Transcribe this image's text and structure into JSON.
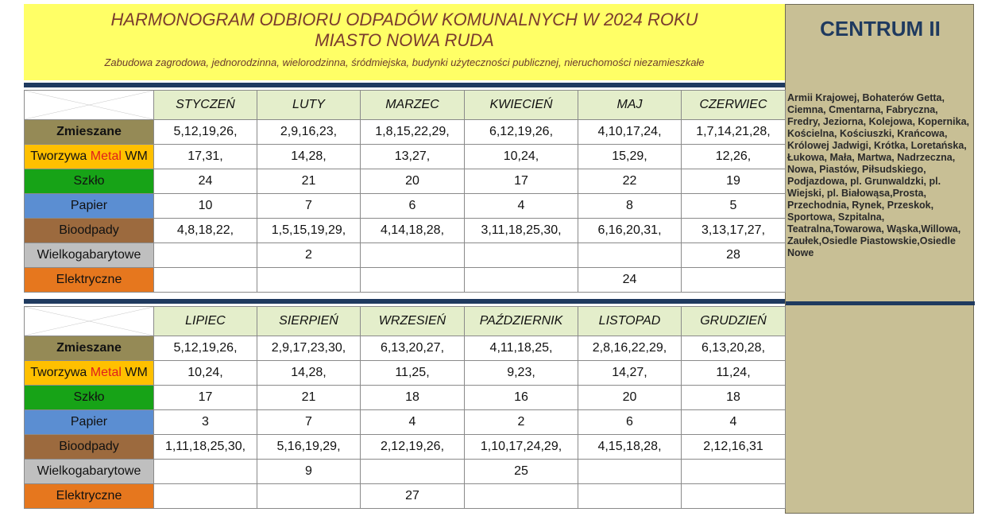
{
  "header": {
    "title_line1": "HARMONOGRAM ODBIORU  ODPADÓW  KOMUNALNYCH  W 2024 ROKU",
    "title_line2": "MIASTO NOWA RUDA",
    "subtitle": "Zabudowa zagrodowa, jednorodzinna, wielorodzinna, śródmiejska, budynki użyteczności publicznej, nieruchomości niezamieszkałe"
  },
  "sidebar": {
    "title": "CENTRUM  II",
    "streets": "Armii Krajowej, Bohaterów Getta, Ciemna, Cmentarna, Fabryczna, Fredry, Jeziorna, Kolejowa, Kopernika, Kościelna, Kościuszki, Krańcowa, Królowej Jadwigi, Krótka, Loretańska, Łukowa, Mała, Martwa, Nadrzeczna, Nowa, Piastów, Piłsudskiego, Podjazdowa, pl. Grunwaldzki, pl. Wiejski, pl. Białowąsa,Prosta, Przechodnia, Rynek, Przeskok, Sportowa, Szpitalna, Teatralna,Towarowa, Wąska,Willowa, Zaułek,Osiedle Piastowskie,Osiedle Nowe"
  },
  "categories": {
    "mixed": "Zmieszane",
    "plastics_pre": "Tworzywa ",
    "plastics_metal": "Metal",
    "plastics_post": " WM",
    "glass": "Szkło",
    "paper": "Papier",
    "bio": "Bioodpady",
    "bulky": "Wielkogabarytowe",
    "electro": "Elektryczne"
  },
  "colors": {
    "mixed": "#958a56",
    "plastics": "#ffc000",
    "glass": "#17a317",
    "paper": "#5b8ed2",
    "bio": "#9c6a3e",
    "bulky": "#bfbfbf",
    "electro": "#e6771e",
    "header_bg": "#ffff66",
    "sidebar_bg": "#c8bf95",
    "month_bg": "#e4eecb"
  },
  "half1": {
    "months": [
      "STYCZEŃ",
      "LUTY",
      "MARZEC",
      "KWIECIEŃ",
      "MAJ",
      "CZERWIEC"
    ],
    "mixed": [
      "5,12,19,26,",
      "2,9,16,23,",
      "1,8,15,22,29,",
      "6,12,19,26,",
      "4,10,17,24,",
      "1,7,14,21,28,"
    ],
    "plastics": [
      "17,31,",
      "14,28,",
      "13,27,",
      "10,24,",
      "15,29,",
      "12,26,"
    ],
    "glass": [
      "24",
      "21",
      "20",
      "17",
      "22",
      "19"
    ],
    "paper": [
      "10",
      "7",
      "6",
      "4",
      "8",
      "5"
    ],
    "bio": [
      "4,8,18,22,",
      "1,5,15,19,29,",
      "4,14,18,28,",
      "3,11,18,25,30,",
      "6,16,20,31,",
      "3,13,17,27,"
    ],
    "bulky": [
      "",
      "2",
      "",
      "",
      "",
      "28"
    ],
    "electro": [
      "",
      "",
      "",
      "",
      "24",
      ""
    ]
  },
  "half2": {
    "months": [
      "LIPIEC",
      "SIERPIEŃ",
      "WRZESIEŃ",
      "PAŹDZIERNIK",
      "LISTOPAD",
      "GRUDZIEŃ"
    ],
    "mixed": [
      "5,12,19,26,",
      "2,9,17,23,30,",
      "6,13,20,27,",
      "4,11,18,25,",
      "2,8,16,22,29,",
      "6,13,20,28,"
    ],
    "plastics": [
      "10,24,",
      "14,28,",
      "11,25,",
      "9,23,",
      "14,27,",
      "11,24,"
    ],
    "glass": [
      "17",
      "21",
      "18",
      "16",
      "20",
      "18"
    ],
    "paper": [
      "3",
      "7",
      "4",
      "2",
      "6",
      "4"
    ],
    "bio": [
      "1,11,18,25,30,",
      "5,16,19,29,",
      "2,12,19,26,",
      "1,10,17,24,29,",
      "4,15,18,28,",
      "2,12,16,31"
    ],
    "bulky": [
      "",
      "9",
      "",
      "25",
      "",
      ""
    ],
    "electro": [
      "",
      "",
      "27",
      "",
      "",
      ""
    ]
  }
}
